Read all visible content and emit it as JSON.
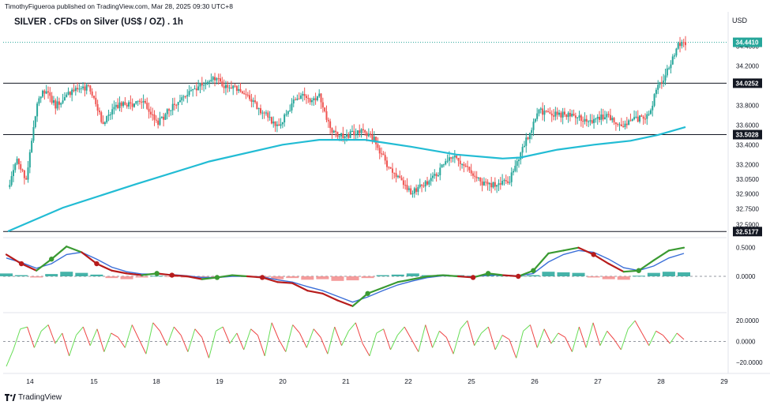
{
  "header": {
    "publish_line": "TimothyFigueroa published on TradingView.com, Mar 28, 2025 09:30 UTC+8",
    "title": "SILVER . CFDs on Silver (US$ / OZ) . 1h",
    "currency": "USD",
    "brand": "TradingView"
  },
  "colors": {
    "up": "#26a69a",
    "down": "#ef5350",
    "ma": "#22bcd4",
    "fast": "#3a9a32",
    "slow": "#3b6fd8",
    "slow_down": "#b71c1c",
    "rsi_up": "#66dd55",
    "rsi_down": "#ee4444",
    "last_tag": "#26a69a"
  },
  "chart_data": [
    {
      "type": "candlestick",
      "title": "SILVER . CFDs on Silver (US$ / OZ) . 1h",
      "ylim": [
        32.48,
        34.55
      ],
      "y_ticks": [
        34.4,
        34.2,
        33.8,
        33.6,
        33.4,
        33.2,
        33.05,
        32.9,
        32.75,
        32.59
      ],
      "x_tick_labels": [
        "14",
        "15",
        "18",
        "19",
        "20",
        "21",
        "22",
        "25",
        "26",
        "27",
        "28",
        "29"
      ],
      "price_levels": [
        {
          "label": "34.0252",
          "value": 34.0252
        },
        {
          "label": "33.5028",
          "value": 33.5028
        },
        {
          "label": "32.5177",
          "value": 32.5177
        }
      ],
      "last_price": {
        "label": "34.4410",
        "value": 34.441
      },
      "price_path": [
        {
          "x": 0,
          "y": 32.97
        },
        {
          "x": 5,
          "y": 33.25
        },
        {
          "x": 10,
          "y": 33.05
        },
        {
          "x": 16,
          "y": 33.85
        },
        {
          "x": 20,
          "y": 33.95
        },
        {
          "x": 26,
          "y": 33.8
        },
        {
          "x": 36,
          "y": 33.95
        },
        {
          "x": 44,
          "y": 33.98
        },
        {
          "x": 52,
          "y": 33.62
        },
        {
          "x": 60,
          "y": 33.8
        },
        {
          "x": 74,
          "y": 33.82
        },
        {
          "x": 82,
          "y": 33.62
        },
        {
          "x": 90,
          "y": 33.8
        },
        {
          "x": 100,
          "y": 33.95
        },
        {
          "x": 112,
          "y": 34.1
        },
        {
          "x": 118,
          "y": 34.0
        },
        {
          "x": 126,
          "y": 33.96
        },
        {
          "x": 138,
          "y": 33.75
        },
        {
          "x": 148,
          "y": 33.58
        },
        {
          "x": 158,
          "y": 33.9
        },
        {
          "x": 166,
          "y": 33.85
        },
        {
          "x": 170,
          "y": 33.92
        },
        {
          "x": 176,
          "y": 33.55
        },
        {
          "x": 184,
          "y": 33.48
        },
        {
          "x": 194,
          "y": 33.56
        },
        {
          "x": 200,
          "y": 33.45
        },
        {
          "x": 208,
          "y": 33.15
        },
        {
          "x": 214,
          "y": 33.07
        },
        {
          "x": 220,
          "y": 32.92
        },
        {
          "x": 226,
          "y": 32.98
        },
        {
          "x": 234,
          "y": 33.1
        },
        {
          "x": 242,
          "y": 33.28
        },
        {
          "x": 250,
          "y": 33.2
        },
        {
          "x": 258,
          "y": 33.02
        },
        {
          "x": 266,
          "y": 32.98
        },
        {
          "x": 274,
          "y": 33.05
        },
        {
          "x": 282,
          "y": 33.4
        },
        {
          "x": 290,
          "y": 33.75
        },
        {
          "x": 298,
          "y": 33.7
        },
        {
          "x": 308,
          "y": 33.72
        },
        {
          "x": 318,
          "y": 33.62
        },
        {
          "x": 326,
          "y": 33.7
        },
        {
          "x": 334,
          "y": 33.6
        },
        {
          "x": 342,
          "y": 33.65
        },
        {
          "x": 350,
          "y": 33.7
        },
        {
          "x": 354,
          "y": 33.95
        },
        {
          "x": 358,
          "y": 34.05
        },
        {
          "x": 362,
          "y": 34.25
        },
        {
          "x": 366,
          "y": 34.4
        },
        {
          "x": 370,
          "y": 34.44
        }
      ],
      "moving_average": [
        {
          "x": 0,
          "y": 32.52
        },
        {
          "x": 30,
          "y": 32.76
        },
        {
          "x": 70,
          "y": 33.0
        },
        {
          "x": 110,
          "y": 33.23
        },
        {
          "x": 150,
          "y": 33.4
        },
        {
          "x": 170,
          "y": 33.45
        },
        {
          "x": 195,
          "y": 33.45
        },
        {
          "x": 220,
          "y": 33.38
        },
        {
          "x": 245,
          "y": 33.3
        },
        {
          "x": 270,
          "y": 33.26
        },
        {
          "x": 280,
          "y": 33.27
        },
        {
          "x": 300,
          "y": 33.35
        },
        {
          "x": 320,
          "y": 33.4
        },
        {
          "x": 340,
          "y": 33.44
        },
        {
          "x": 355,
          "y": 33.5
        },
        {
          "x": 370,
          "y": 33.58
        }
      ]
    },
    {
      "type": "line",
      "title": "",
      "ylim": [
        -0.62,
        0.62
      ],
      "y_ticks": [
        0.5,
        0.0
      ],
      "series": [
        {
          "values": [
            0.38,
            0.22,
            0.1,
            0.3,
            0.52,
            0.42,
            0.22,
            0.1,
            0.05,
            0.02,
            0.05,
            0.02,
            0.0,
            -0.05,
            -0.02,
            0.02,
            0.0,
            -0.02,
            -0.1,
            -0.12,
            -0.25,
            -0.3,
            -0.42,
            -0.52,
            -0.3,
            -0.2,
            -0.1,
            -0.05,
            0.0,
            0.02,
            0.0,
            -0.02,
            0.05,
            0.02,
            0.0,
            0.1,
            0.4,
            0.45,
            0.5,
            0.38,
            0.22,
            0.08,
            0.1,
            0.28,
            0.45,
            0.5
          ]
        },
        {
          "values": [
            0.32,
            0.24,
            0.14,
            0.22,
            0.38,
            0.42,
            0.3,
            0.16,
            0.08,
            0.04,
            0.04,
            0.03,
            0.01,
            -0.02,
            -0.02,
            0.0,
            0.0,
            -0.01,
            -0.06,
            -0.1,
            -0.18,
            -0.25,
            -0.35,
            -0.45,
            -0.36,
            -0.25,
            -0.15,
            -0.08,
            -0.02,
            0.01,
            0.0,
            -0.01,
            0.02,
            0.02,
            0.01,
            0.05,
            0.25,
            0.38,
            0.45,
            0.42,
            0.3,
            0.15,
            0.1,
            0.18,
            0.32,
            0.4
          ]
        }
      ],
      "histogram": [
        0.05,
        0.02,
        -0.02,
        0.04,
        0.08,
        0.06,
        0.03,
        -0.03,
        -0.05,
        -0.02,
        0.01,
        -0.01,
        -0.02,
        -0.04,
        -0.02,
        0.01,
        -0.01,
        -0.03,
        -0.05,
        -0.03,
        -0.06,
        -0.05,
        -0.08,
        -0.07,
        -0.03,
        0.02,
        0.03,
        0.05,
        0.02,
        0.03,
        0.02,
        0.01,
        0.03,
        0.02,
        0.01,
        0.02,
        0.08,
        0.07,
        0.06,
        -0.02,
        -0.05,
        -0.06,
        0.01,
        0.06,
        0.08,
        0.07
      ]
    },
    {
      "type": "line",
      "title": "",
      "ylim": [
        -27,
        27
      ],
      "y_ticks": [
        20.0,
        0.0,
        -20.0
      ],
      "series": [
        {
          "values": [
            -24,
            -8,
            12,
            14,
            -6,
            10,
            16,
            -2,
            8,
            -14,
            6,
            14,
            -4,
            12,
            -10,
            8,
            4,
            -6,
            16,
            2,
            -12,
            18,
            10,
            -4,
            14,
            6,
            -10,
            12,
            4,
            -16,
            10,
            14,
            -2,
            8,
            -8,
            12,
            6,
            -14,
            18,
            2,
            -10,
            16,
            8,
            -6,
            12,
            4,
            -12,
            14,
            -4,
            10,
            18,
            -2,
            -14,
            8,
            12,
            -8,
            6,
            14,
            2,
            -10,
            16,
            -6,
            10,
            4,
            -12,
            12,
            20,
            -4,
            8,
            14,
            -8,
            6,
            2,
            -16,
            10,
            16,
            -6,
            12,
            -2,
            8,
            4,
            -10,
            14,
            -6,
            18,
            -4,
            10,
            2,
            -8,
            12,
            20,
            8,
            -4,
            10,
            6,
            -2,
            8,
            2
          ]
        }
      ]
    }
  ]
}
